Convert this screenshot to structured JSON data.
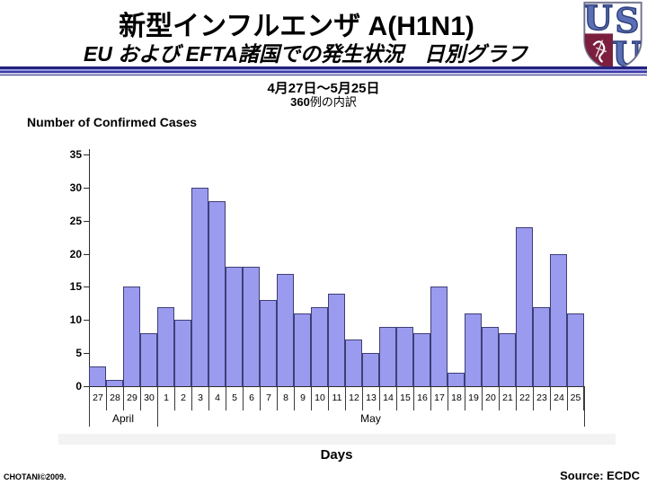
{
  "slide": {
    "title_line1": "新型インフルエンザ A(H1N1)",
    "title_line2": "EU および EFTA諸国での発生状況　日別グラフ",
    "date_range": "4月27日～5月25日",
    "case_count": "360",
    "case_count_suffix": "例の内訳",
    "credit": "CHOTANI©2009.",
    "source": "Source: ECDC"
  },
  "logo": {
    "name": "usu-shield-logo",
    "letter_top_left": "U",
    "letter_top_right": "S",
    "letter_bottom_right": "U",
    "blue": "#4a5fa5",
    "maroon": "#7c1f3e",
    "border_gray": "#9a9aa8"
  },
  "chart_data": {
    "type": "bar",
    "title": "",
    "ylabel": "Number of Confirmed Cases",
    "xlabel": "Days",
    "categories": [
      "27",
      "28",
      "29",
      "30",
      "1",
      "2",
      "3",
      "4",
      "5",
      "6",
      "7",
      "8",
      "9",
      "10",
      "11",
      "12",
      "13",
      "14",
      "15",
      "16",
      "17",
      "18",
      "19",
      "20",
      "21",
      "22",
      "23",
      "24",
      "25"
    ],
    "values": [
      3,
      1,
      15,
      8,
      12,
      10,
      30,
      28,
      18,
      18,
      13,
      17,
      11,
      12,
      14,
      7,
      5,
      9,
      9,
      8,
      15,
      2,
      11,
      9,
      8,
      24,
      12,
      20,
      11
    ],
    "groups": [
      {
        "label": "April",
        "span": 4
      },
      {
        "label": "May",
        "span": 25
      }
    ],
    "total": 360,
    "ylim": [
      0,
      35
    ],
    "yticks": [
      0,
      5,
      10,
      15,
      20,
      25,
      30,
      35
    ],
    "grid": false,
    "legend": "none",
    "bar_fill": "#9a9aef",
    "bar_border": "#3f3f75"
  }
}
